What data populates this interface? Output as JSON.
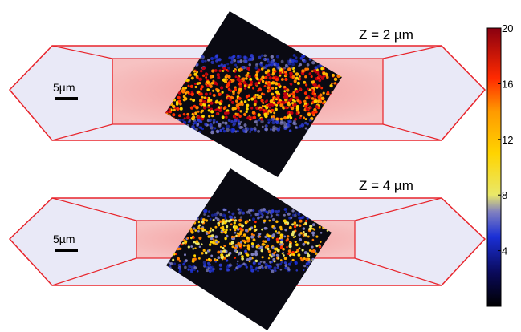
{
  "panels": [
    {
      "id": "top",
      "z_label": "Z = 2 µm",
      "scale_bar_label": "5µm",
      "intensity_level": 0.65
    },
    {
      "id": "bottom",
      "z_label": "Z = 4 µm",
      "scale_bar_label": "5µm",
      "intensity_level": 0.3
    }
  ],
  "colorbar": {
    "ticks": [
      "20",
      "16",
      "12",
      "8",
      "4"
    ],
    "tick_values": [
      20,
      16,
      12,
      8,
      4
    ],
    "range": [
      0,
      20
    ]
  },
  "colors": {
    "outline": "#e8242b",
    "channel_fill": "#f6a6a6",
    "taper_fill": "#e9e9f7",
    "dark_background": "#0a0a12"
  }
}
